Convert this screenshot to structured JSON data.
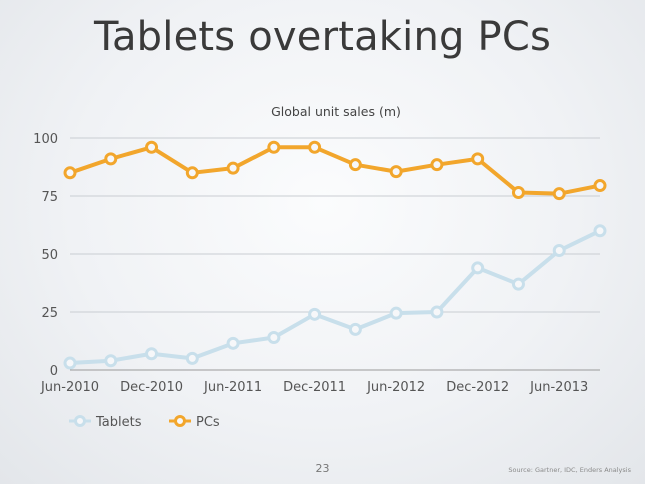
{
  "slide": {
    "title": "Tablets overtaking PCs",
    "page_number": "23",
    "source": "Source: Gartner, IDC, Enders Analysis"
  },
  "chart_data": {
    "type": "line",
    "title": "Global unit sales (m)",
    "xlabel": "",
    "ylabel": "",
    "ylim": [
      0,
      100
    ],
    "yticks": [
      0,
      25,
      50,
      75,
      100
    ],
    "x": [
      "Jun-2010",
      "Sep-2010",
      "Dec-2010",
      "Mar-2011",
      "Jun-2011",
      "Sep-2011",
      "Dec-2011",
      "Mar-2012",
      "Jun-2012",
      "Sep-2012",
      "Dec-2012",
      "Mar-2013",
      "Jun-2013",
      "Sep-2013"
    ],
    "xtick_labels": [
      "Jun-2010",
      "Dec-2010",
      "Jun-2011",
      "Dec-2011",
      "Jun-2012",
      "Dec-2012",
      "Jun-2013"
    ],
    "grid": true,
    "legend": "bottom-left",
    "series": [
      {
        "name": "Tablets",
        "color": "#c8dfeb",
        "values": [
          3,
          4,
          7,
          5,
          11.5,
          14,
          24,
          17.5,
          24.5,
          25,
          44,
          37,
          51.5,
          60
        ]
      },
      {
        "name": "PCs",
        "color": "#f2a62c",
        "values": [
          85,
          91,
          96,
          85,
          87,
          96,
          96,
          88.5,
          85.5,
          88.5,
          91,
          76.5,
          76,
          79.5
        ]
      }
    ]
  }
}
